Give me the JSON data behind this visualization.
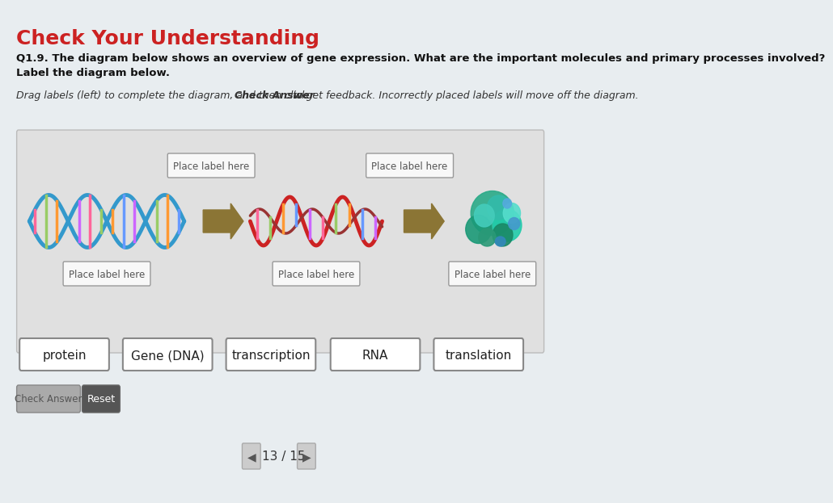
{
  "title": "Check Your Understanding",
  "title_color": "#cc2222",
  "title_fontsize": 18,
  "question_text": "Q1.9. The diagram below shows an overview of gene expression. What are the important molecules and primary processes involved?\nLabel the diagram below.",
  "instruction_text": "Drag labels (left) to complete the diagram, and then click ",
  "instruction_bold": "Check Answer",
  "instruction_rest": " to get feedback. Incorrectly placed labels will move off the diagram.",
  "background_color": "#f0f0f0",
  "panel_background": "#e0e0e0",
  "label_buttons": [
    "protein",
    "Gene (DNA)",
    "transcription",
    "RNA",
    "translation"
  ],
  "place_labels_top": [
    "Place label here",
    "Place label here"
  ],
  "place_labels_bottom": [
    "Place label here",
    "Place label here",
    "Place label here"
  ],
  "check_answer_btn": "Check Answer",
  "reset_btn": "Reset",
  "nav_text": "13 / 15",
  "page_bg": "#e8edf0"
}
